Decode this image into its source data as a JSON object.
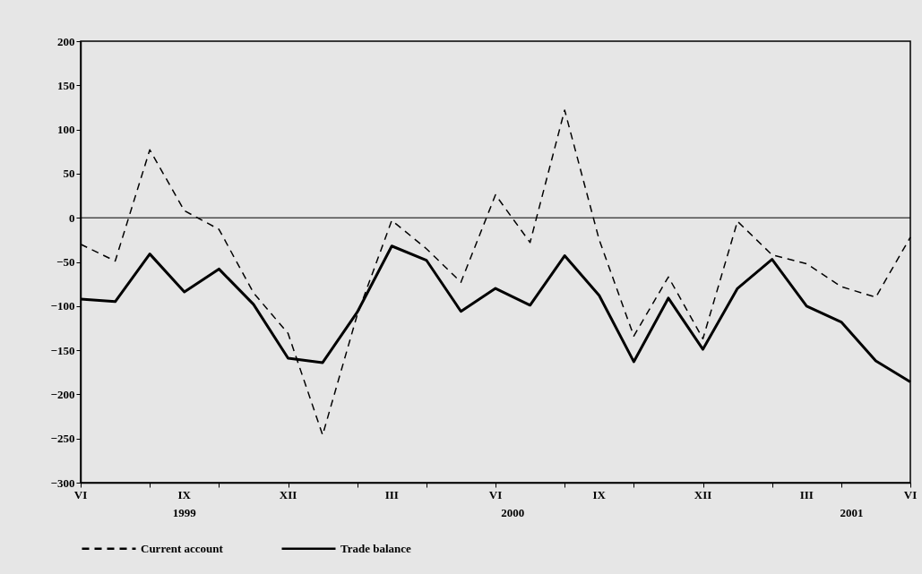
{
  "chart_data": {
    "type": "line",
    "categories": [
      "VI",
      null,
      null,
      "IX",
      null,
      null,
      "XII",
      null,
      null,
      "III",
      null,
      null,
      "VI",
      null,
      null,
      "IX",
      null,
      null,
      "XII",
      null,
      null,
      "III",
      null,
      null,
      "VI"
    ],
    "series": [
      {
        "name": "Current account",
        "color": "#000000",
        "line_style": "dashed",
        "values": [
          -30,
          -49,
          77,
          8,
          -13,
          -85,
          -131,
          -246,
          -110,
          -3,
          -35,
          -73,
          26,
          -28,
          122,
          -25,
          -134,
          -67,
          -137,
          -4,
          -42,
          -52,
          -78,
          -90,
          -22
        ]
      },
      {
        "name": "Trade balance",
        "color": "#000000",
        "line_style": "solid",
        "values": [
          -92,
          -95,
          -41,
          -84,
          -58,
          -98,
          -159,
          -164,
          -107,
          -32,
          -48,
          -106,
          -80,
          -99,
          -43,
          -88,
          -163,
          -91,
          -149,
          -80,
          -47,
          -100,
          -118,
          -162,
          -186
        ]
      }
    ],
    "ylim": [
      -300,
      200
    ],
    "yticks": [
      -300,
      -250,
      -200,
      -150,
      -100,
      -50,
      0,
      50,
      100,
      150,
      200
    ],
    "ref_lines": [
      {
        "axis": "y",
        "value": 0
      }
    ],
    "annotations": [
      "1999",
      "2000",
      "2001"
    ],
    "grid": false,
    "legend": "bottom",
    "marker": "none"
  }
}
